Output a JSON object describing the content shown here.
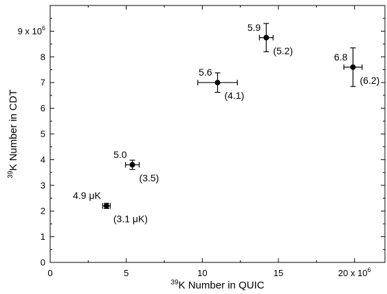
{
  "chart_data": {
    "type": "scatter",
    "title": "",
    "xlabel": {
      "sup": "39",
      "text": "K Number in QUIC"
    },
    "ylabel": {
      "sup": "39",
      "text": "K Number in CDT"
    },
    "xlim": [
      0,
      22000000
    ],
    "ylim": [
      0,
      10000000
    ],
    "grid": false,
    "legend": "none",
    "x_ticks": [
      {
        "value": 0,
        "label": "0"
      },
      {
        "value": 5000000,
        "label": "5"
      },
      {
        "value": 10000000,
        "label": "10"
      },
      {
        "value": 15000000,
        "label": "15"
      },
      {
        "value": 20000000,
        "label": "20 x 10",
        "sup": "6"
      }
    ],
    "y_ticks": [
      {
        "value": 0,
        "label": "0"
      },
      {
        "value": 1000000,
        "label": "1"
      },
      {
        "value": 2000000,
        "label": "2"
      },
      {
        "value": 3000000,
        "label": "3"
      },
      {
        "value": 4000000,
        "label": "4"
      },
      {
        "value": 5000000,
        "label": "5"
      },
      {
        "value": 6000000,
        "label": "6"
      },
      {
        "value": 7000000,
        "label": "7"
      },
      {
        "value": 8000000,
        "label": "8"
      },
      {
        "value": 9000000,
        "label": "9 x 10",
        "sup": "6"
      }
    ],
    "points": [
      {
        "x": 3700000,
        "y": 2200000,
        "xerr": 250000,
        "yerr": 100000,
        "label_top": "4.9 μK",
        "label_bottom": "(3.1 μK)"
      },
      {
        "x": 5400000,
        "y": 3800000,
        "xerr": 450000,
        "yerr": 180000,
        "label_top": "5.0",
        "label_bottom": "(3.5)"
      },
      {
        "x": 11000000,
        "y": 7000000,
        "xerr": 1300000,
        "yerr": 380000,
        "label_top": "5.6",
        "label_bottom": "(4.1)"
      },
      {
        "x": 14200000,
        "y": 8750000,
        "xerr": 450000,
        "yerr": 550000,
        "label_top": "5.9",
        "label_bottom": "(5.2)"
      },
      {
        "x": 19900000,
        "y": 7600000,
        "xerr": 600000,
        "yerr": 750000,
        "label_top": "6.8",
        "label_bottom": "(6.2)"
      }
    ],
    "colors": {
      "marker": "#000000",
      "axis": "#000000"
    }
  }
}
